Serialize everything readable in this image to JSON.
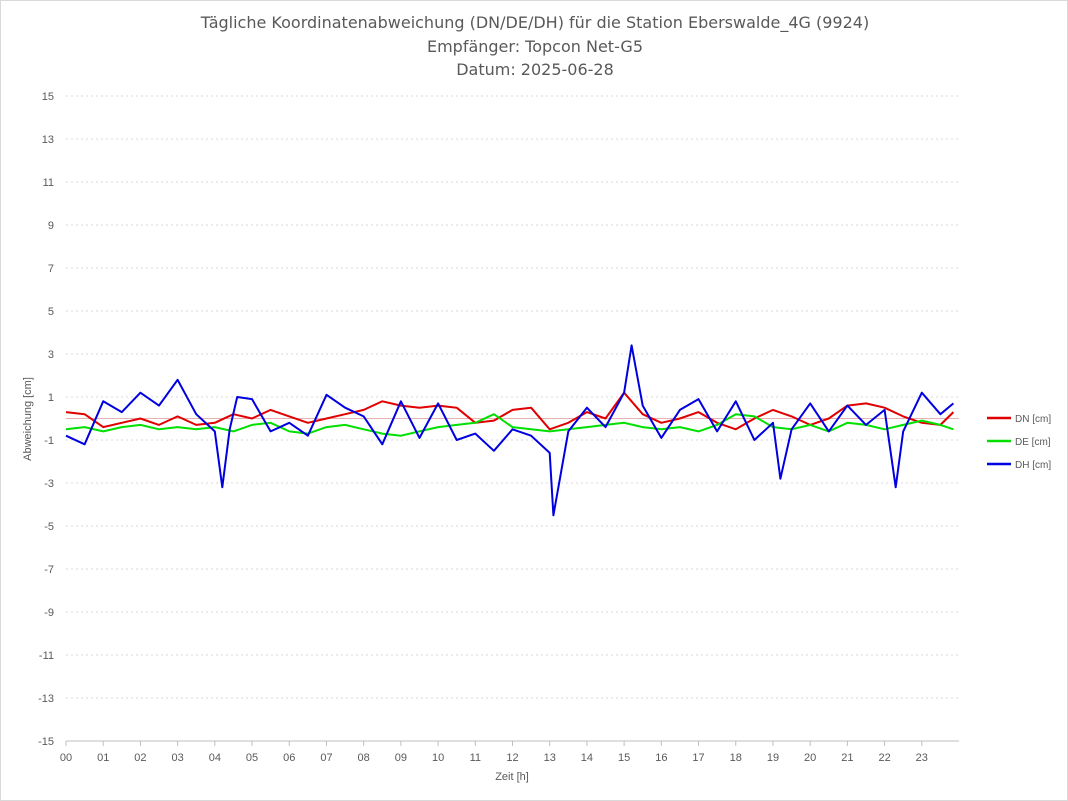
{
  "title_lines": [
    "Tägliche Koordinatenabweichung (DN/DE/DH) für die Station Eberswalde_4G (9924)",
    "Empfänger: Topcon Net-G5",
    "Datum: 2025-06-28"
  ],
  "chart_data": {
    "type": "line",
    "title": "Tägliche Koordinatenabweichung (DN/DE/DH) für die Station Eberswalde_4G (9924)",
    "subtitle": "Empfänger: Topcon Net-G5 / Datum: 2025-06-28",
    "xlabel": "Zeit [h]",
    "ylabel": "Abweichung [cm]",
    "xlim": [
      0,
      24
    ],
    "ylim": [
      -15,
      15
    ],
    "x_ticks": [
      "00",
      "01",
      "02",
      "03",
      "04",
      "05",
      "06",
      "07",
      "08",
      "09",
      "10",
      "11",
      "12",
      "13",
      "14",
      "15",
      "16",
      "17",
      "18",
      "19",
      "20",
      "21",
      "22",
      "23"
    ],
    "y_ticks": [
      15,
      13,
      11,
      9,
      7,
      5,
      3,
      1,
      -1,
      -3,
      -5,
      -7,
      -9,
      -11,
      -13,
      -15
    ],
    "y_tick_labels": [
      "15",
      "13",
      "11",
      "9",
      "7",
      "5",
      "3",
      "1",
      "-1",
      "-3",
      "-5",
      "-7",
      "-9",
      "-11",
      "-13",
      "-15"
    ],
    "grid": true,
    "legend_position": "right",
    "series": [
      {
        "name": "DN [cm]",
        "color": "#e00000",
        "x": [
          0,
          0.5,
          1,
          1.5,
          2,
          2.5,
          3,
          3.5,
          4,
          4.5,
          5,
          5.5,
          6,
          6.5,
          7,
          7.5,
          8,
          8.5,
          9,
          9.5,
          10,
          10.5,
          11,
          11.5,
          12,
          12.5,
          13,
          13.5,
          14,
          14.5,
          15,
          15.5,
          16,
          16.5,
          17,
          17.5,
          18,
          18.5,
          19,
          19.5,
          20,
          20.5,
          21,
          21.5,
          22,
          22.5,
          23,
          23.5,
          23.85
        ],
        "values": [
          0.3,
          0.2,
          -0.4,
          -0.2,
          0.0,
          -0.3,
          0.1,
          -0.3,
          -0.2,
          0.2,
          0.0,
          0.4,
          0.1,
          -0.2,
          0.0,
          0.2,
          0.4,
          0.8,
          0.6,
          0.5,
          0.6,
          0.5,
          -0.2,
          -0.1,
          0.4,
          0.5,
          -0.5,
          -0.2,
          0.3,
          0.0,
          1.2,
          0.2,
          -0.2,
          0.0,
          0.3,
          -0.2,
          -0.5,
          0.0,
          0.4,
          0.1,
          -0.3,
          0.0,
          0.6,
          0.7,
          0.5,
          0.1,
          -0.2,
          -0.3,
          0.3
        ]
      },
      {
        "name": "DE [cm]",
        "color": "#00e000",
        "x": [
          0,
          0.5,
          1,
          1.5,
          2,
          2.5,
          3,
          3.5,
          4,
          4.5,
          5,
          5.5,
          6,
          6.5,
          7,
          7.5,
          8,
          8.5,
          9,
          9.5,
          10,
          10.5,
          11,
          11.5,
          12,
          12.5,
          13,
          13.5,
          14,
          14.5,
          15,
          15.5,
          16,
          16.5,
          17,
          17.5,
          18,
          18.5,
          19,
          19.5,
          20,
          20.5,
          21,
          21.5,
          22,
          22.5,
          23,
          23.5,
          23.85
        ],
        "values": [
          -0.5,
          -0.4,
          -0.6,
          -0.4,
          -0.3,
          -0.5,
          -0.4,
          -0.5,
          -0.4,
          -0.6,
          -0.3,
          -0.2,
          -0.6,
          -0.7,
          -0.4,
          -0.3,
          -0.5,
          -0.7,
          -0.8,
          -0.6,
          -0.4,
          -0.3,
          -0.2,
          0.2,
          -0.4,
          -0.5,
          -0.6,
          -0.5,
          -0.4,
          -0.3,
          -0.2,
          -0.4,
          -0.5,
          -0.4,
          -0.6,
          -0.3,
          0.2,
          0.1,
          -0.4,
          -0.5,
          -0.3,
          -0.6,
          -0.2,
          -0.3,
          -0.5,
          -0.3,
          -0.1,
          -0.3,
          -0.5
        ]
      },
      {
        "name": "DH [cm]",
        "color": "#0000e0",
        "x": [
          0,
          0.5,
          1,
          1.5,
          2,
          2.5,
          3,
          3.5,
          4,
          4.2,
          4.4,
          4.6,
          5,
          5.5,
          6,
          6.5,
          7,
          7.5,
          8,
          8.5,
          9,
          9.5,
          10,
          10.5,
          11,
          11.5,
          12,
          12.5,
          13,
          13.1,
          13.5,
          14,
          14.5,
          15,
          15.2,
          15.5,
          16,
          16.5,
          17,
          17.5,
          18,
          18.5,
          19,
          19.2,
          19.5,
          20,
          20.5,
          21,
          21.5,
          22,
          22.3,
          22.5,
          23,
          23.5,
          23.85
        ],
        "values": [
          -0.8,
          -1.2,
          0.8,
          0.3,
          1.2,
          0.6,
          1.8,
          0.2,
          -0.6,
          -3.2,
          -0.5,
          1.0,
          0.9,
          -0.6,
          -0.2,
          -0.8,
          1.1,
          0.5,
          0.1,
          -1.2,
          0.8,
          -0.9,
          0.7,
          -1.0,
          -0.7,
          -1.5,
          -0.5,
          -0.8,
          -1.6,
          -4.5,
          -0.6,
          0.5,
          -0.4,
          1.2,
          3.4,
          0.6,
          -0.9,
          0.4,
          0.9,
          -0.6,
          0.8,
          -1.0,
          -0.2,
          -2.8,
          -0.5,
          0.7,
          -0.6,
          0.6,
          -0.3,
          0.4,
          -3.2,
          -0.6,
          1.2,
          0.2,
          0.7
        ]
      }
    ]
  }
}
